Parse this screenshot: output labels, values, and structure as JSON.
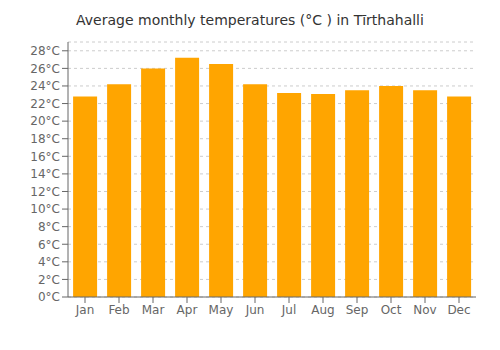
{
  "chart_data": {
    "type": "bar",
    "title": "Average monthly temperatures (°C ) in Tīrthahalli",
    "categories": [
      "Jan",
      "Feb",
      "Mar",
      "Apr",
      "May",
      "Jun",
      "Jul",
      "Aug",
      "Sep",
      "Oct",
      "Nov",
      "Dec"
    ],
    "values": [
      22.8,
      24.2,
      26.0,
      27.2,
      26.5,
      24.2,
      23.2,
      23.1,
      23.5,
      24.0,
      23.5,
      22.8
    ],
    "color": "#FFA500",
    "ylim": [
      0,
      29
    ],
    "yticks": [
      {
        "value": 0,
        "label": "0°C"
      },
      {
        "value": 2,
        "label": "2°C"
      },
      {
        "value": 4,
        "label": "4°C"
      },
      {
        "value": 6,
        "label": "6°C"
      },
      {
        "value": 8,
        "label": "8°C"
      },
      {
        "value": 10,
        "label": "10°C"
      },
      {
        "value": 12,
        "label": "12°C"
      },
      {
        "value": 14,
        "label": "14°C"
      },
      {
        "value": 16,
        "label": "16°C"
      },
      {
        "value": 18,
        "label": "18°C"
      },
      {
        "value": 20,
        "label": "20°C"
      },
      {
        "value": 22,
        "label": "22°C"
      },
      {
        "value": 24,
        "label": "24°C"
      },
      {
        "value": 26,
        "label": "26°C"
      },
      {
        "value": 28,
        "label": "28°C"
      }
    ],
    "grid": true
  }
}
